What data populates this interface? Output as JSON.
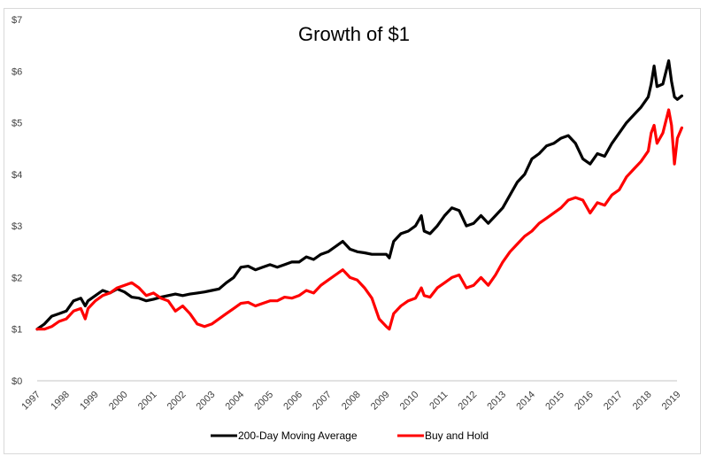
{
  "chart_data": {
    "type": "line",
    "title": "Growth of $1",
    "xlabel": "",
    "ylabel": "",
    "ylim": [
      0,
      7
    ],
    "xlim": [
      1997,
      2019.2
    ],
    "y_ticks": [
      0,
      1,
      2,
      3,
      4,
      5,
      6,
      7
    ],
    "y_tick_labels": [
      "$0",
      "$1",
      "$2",
      "$3",
      "$4",
      "$5",
      "$6",
      "$7"
    ],
    "x_tick_labels": [
      "1997",
      "1998",
      "1999",
      "2000",
      "2001",
      "2002",
      "2003",
      "2004",
      "2005",
      "2006",
      "2007",
      "2008",
      "2009",
      "2010",
      "2011",
      "2012",
      "2013",
      "2014",
      "2015",
      "2016",
      "2017",
      "2018",
      "2019"
    ],
    "grid": {
      "horizontal": false,
      "vertical": false,
      "baseline": true
    },
    "legend": {
      "placement": "bottom-center"
    },
    "series": [
      {
        "name": "200-Day Moving Average",
        "color": "#000000",
        "x": [
          1997.0,
          1997.25,
          1997.5,
          1997.75,
          1998.0,
          1998.25,
          1998.5,
          1998.65,
          1998.75,
          1999.0,
          1999.25,
          1999.5,
          1999.75,
          2000.0,
          2000.25,
          2000.5,
          2000.75,
          2001.0,
          2001.25,
          2001.5,
          2001.75,
          2002.0,
          2002.25,
          2002.5,
          2002.75,
          2003.0,
          2003.25,
          2003.5,
          2003.75,
          2004.0,
          2004.25,
          2004.5,
          2004.75,
          2005.0,
          2005.25,
          2005.5,
          2005.75,
          2006.0,
          2006.25,
          2006.5,
          2006.75,
          2007.0,
          2007.25,
          2007.5,
          2007.75,
          2008.0,
          2008.25,
          2008.5,
          2008.75,
          2009.0,
          2009.1,
          2009.25,
          2009.5,
          2009.75,
          2010.0,
          2010.2,
          2010.3,
          2010.5,
          2010.75,
          2011.0,
          2011.25,
          2011.5,
          2011.75,
          2012.0,
          2012.25,
          2012.5,
          2012.75,
          2013.0,
          2013.25,
          2013.5,
          2013.75,
          2014.0,
          2014.25,
          2014.5,
          2014.75,
          2015.0,
          2015.25,
          2015.5,
          2015.75,
          2016.0,
          2016.25,
          2016.5,
          2016.75,
          2017.0,
          2017.25,
          2017.5,
          2017.75,
          2018.0,
          2018.1,
          2018.2,
          2018.3,
          2018.5,
          2018.7,
          2018.8,
          2018.9,
          2019.0,
          2019.15
        ],
        "values": [
          1.0,
          1.1,
          1.25,
          1.3,
          1.35,
          1.55,
          1.6,
          1.45,
          1.55,
          1.65,
          1.75,
          1.7,
          1.78,
          1.72,
          1.62,
          1.6,
          1.55,
          1.58,
          1.62,
          1.65,
          1.68,
          1.65,
          1.68,
          1.7,
          1.72,
          1.75,
          1.78,
          1.9,
          2.0,
          2.2,
          2.22,
          2.15,
          2.2,
          2.25,
          2.2,
          2.25,
          2.3,
          2.3,
          2.4,
          2.35,
          2.45,
          2.5,
          2.6,
          2.7,
          2.55,
          2.5,
          2.48,
          2.45,
          2.45,
          2.45,
          2.38,
          2.7,
          2.85,
          2.9,
          3.0,
          3.2,
          2.9,
          2.85,
          3.0,
          3.2,
          3.35,
          3.3,
          3.0,
          3.05,
          3.2,
          3.05,
          3.2,
          3.35,
          3.6,
          3.85,
          4.0,
          4.3,
          4.4,
          4.55,
          4.6,
          4.7,
          4.75,
          4.6,
          4.3,
          4.2,
          4.4,
          4.35,
          4.6,
          4.8,
          5.0,
          5.15,
          5.3,
          5.5,
          5.75,
          6.1,
          5.7,
          5.75,
          6.2,
          5.8,
          5.5,
          5.45,
          5.52
        ]
      },
      {
        "name": "Buy and Hold",
        "color": "#ff0000",
        "x": [
          1997.0,
          1997.25,
          1997.5,
          1997.75,
          1998.0,
          1998.25,
          1998.5,
          1998.65,
          1998.75,
          1999.0,
          1999.25,
          1999.5,
          1999.75,
          2000.0,
          2000.25,
          2000.5,
          2000.75,
          2001.0,
          2001.25,
          2001.5,
          2001.75,
          2002.0,
          2002.25,
          2002.5,
          2002.75,
          2003.0,
          2003.25,
          2003.5,
          2003.75,
          2004.0,
          2004.25,
          2004.5,
          2004.75,
          2005.0,
          2005.25,
          2005.5,
          2005.75,
          2006.0,
          2006.25,
          2006.5,
          2006.75,
          2007.0,
          2007.25,
          2007.5,
          2007.75,
          2008.0,
          2008.25,
          2008.5,
          2008.75,
          2009.0,
          2009.1,
          2009.25,
          2009.5,
          2009.75,
          2010.0,
          2010.2,
          2010.3,
          2010.5,
          2010.75,
          2011.0,
          2011.25,
          2011.5,
          2011.75,
          2012.0,
          2012.25,
          2012.5,
          2012.75,
          2013.0,
          2013.25,
          2013.5,
          2013.75,
          2014.0,
          2014.25,
          2014.5,
          2014.75,
          2015.0,
          2015.25,
          2015.5,
          2015.75,
          2016.0,
          2016.25,
          2016.5,
          2016.75,
          2017.0,
          2017.25,
          2017.5,
          2017.75,
          2018.0,
          2018.1,
          2018.2,
          2018.3,
          2018.5,
          2018.7,
          2018.8,
          2018.9,
          2019.0,
          2019.15
        ],
        "values": [
          1.0,
          1.0,
          1.05,
          1.15,
          1.2,
          1.35,
          1.4,
          1.2,
          1.4,
          1.55,
          1.65,
          1.7,
          1.8,
          1.85,
          1.9,
          1.8,
          1.65,
          1.7,
          1.6,
          1.55,
          1.35,
          1.45,
          1.3,
          1.1,
          1.05,
          1.1,
          1.2,
          1.3,
          1.4,
          1.5,
          1.52,
          1.45,
          1.5,
          1.55,
          1.55,
          1.62,
          1.6,
          1.65,
          1.75,
          1.7,
          1.85,
          1.95,
          2.05,
          2.15,
          2.0,
          1.95,
          1.8,
          1.6,
          1.2,
          1.05,
          1.0,
          1.3,
          1.45,
          1.55,
          1.6,
          1.8,
          1.65,
          1.62,
          1.8,
          1.9,
          2.0,
          2.05,
          1.8,
          1.85,
          2.0,
          1.85,
          2.05,
          2.3,
          2.5,
          2.65,
          2.8,
          2.9,
          3.05,
          3.15,
          3.25,
          3.35,
          3.5,
          3.55,
          3.5,
          3.25,
          3.45,
          3.4,
          3.6,
          3.7,
          3.95,
          4.1,
          4.25,
          4.45,
          4.8,
          4.95,
          4.6,
          4.8,
          5.25,
          4.95,
          4.2,
          4.7,
          4.9
        ]
      }
    ]
  }
}
